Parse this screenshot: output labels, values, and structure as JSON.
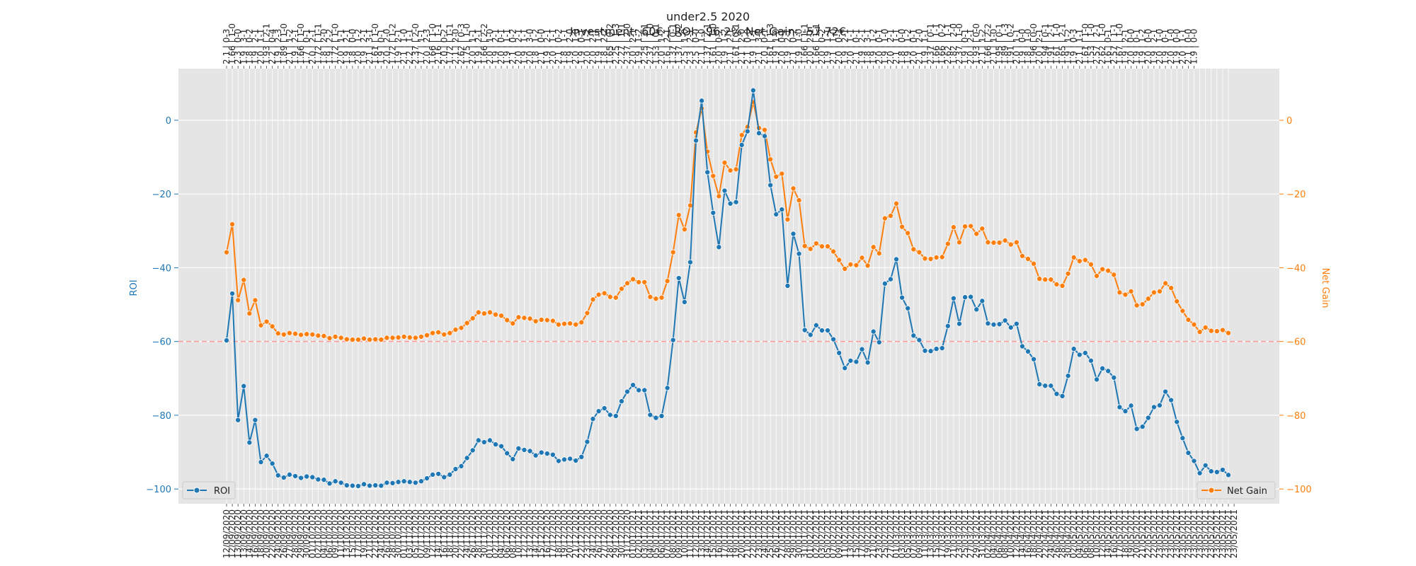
{
  "chart_data": {
    "type": "line",
    "title": "under2.5 2020",
    "subtitle": "Investment: 60€ | ROI: -96.2% Net Gain: -57.72€",
    "y_left_label": "ROI",
    "y_right_label": "Net Gain",
    "ylim_left": [
      -104,
      14
    ],
    "ylim_right": [
      -104,
      14
    ],
    "yticks_left": [
      0,
      -20,
      -40,
      -60,
      -80,
      -100
    ],
    "yticks_right": [
      0,
      -20,
      -40,
      -60,
      -80,
      -100
    ],
    "reference_line": -60,
    "grid": true,
    "legend_left": "bottom-left",
    "legend_right": "bottom-right",
    "colors": {
      "roi": "#1f77b4",
      "net_gain": "#ff7f0e",
      "reference": "#ff9999",
      "background": "#e5e5e5"
    },
    "x_labels": [
      "12/09/2020",
      "12/09/2020",
      "13/09/2020",
      "13/09/2020",
      "14/09/2020",
      "16/09/2020",
      "18/09/2020",
      "20/09/2020",
      "22/09/2020",
      "24/09/2020",
      "26/09/2020",
      "27/09/2020",
      "28/09/2020",
      "29/09/2020",
      "30/09/2020",
      "01/10/2020",
      "02/10/2020",
      "04/10/2020",
      "06/10/2020",
      "09/10/2020",
      "11/10/2020",
      "13/10/2020",
      "15/10/2020",
      "17/10/2020",
      "19/10/2020",
      "21/10/2020",
      "22/10/2020",
      "24/10/2020",
      "26/10/2020",
      "28/10/2020",
      "30/10/2020",
      "01/11/2020",
      "03/11/2020",
      "05/11/2020",
      "07/11/2020",
      "09/11/2020",
      "12/11/2020",
      "14/11/2020",
      "16/11/2020",
      "18/11/2020",
      "20/11/2020",
      "22/11/2020",
      "24/11/2020",
      "26/11/2020",
      "28/11/2020",
      "30/11/2020",
      "01/12/2020",
      "02/12/2020",
      "04/12/2020",
      "06/12/2020",
      "08/12/2020",
      "10/12/2020",
      "12/12/2020",
      "13/12/2020",
      "14/12/2020",
      "15/12/2020",
      "16/12/2020",
      "17/12/2020",
      "18/12/2020",
      "19/12/2020",
      "20/12/2020",
      "21/12/2020",
      "22/12/2020",
      "23/12/2020",
      "24/12/2020",
      "26/12/2020",
      "27/12/2020",
      "28/12/2020",
      "29/12/2020",
      "30/12/2020",
      "31/12/2020",
      "01/01/2021",
      "02/01/2021",
      "03/01/2021",
      "04/01/2021",
      "05/01/2021",
      "06/01/2021",
      "07/01/2021",
      "08/01/2021",
      "09/01/2021",
      "10/01/2021",
      "11/01/2021",
      "12/01/2021",
      "13/01/2021",
      "14/01/2021",
      "15/01/2021",
      "16/01/2021",
      "17/01/2021",
      "18/01/2021",
      "19/01/2021",
      "20/01/2021",
      "21/01/2021",
      "22/01/2021",
      "23/01/2021",
      "24/01/2021",
      "25/01/2021",
      "26/01/2021",
      "27/01/2021",
      "28/01/2021",
      "29/01/2021",
      "30/01/2021",
      "31/01/2021",
      "01/02/2021",
      "02/02/2021",
      "03/02/2021",
      "05/02/2021",
      "07/02/2021",
      "09/02/2021",
      "11/02/2021",
      "13/02/2021",
      "15/02/2021",
      "17/02/2021",
      "19/02/2021",
      "21/02/2021",
      "23/02/2021",
      "25/02/2021",
      "27/02/2021",
      "01/03/2021",
      "03/03/2021",
      "05/03/2021",
      "07/03/2021",
      "09/03/2021",
      "11/03/2021",
      "13/03/2021",
      "15/03/2021",
      "17/03/2021",
      "19/03/2021",
      "21/03/2021",
      "23/03/2021",
      "25/03/2021",
      "27/03/2021",
      "29/03/2021",
      "31/03/2021",
      "02/04/2021",
      "04/04/2021",
      "06/04/2021",
      "08/04/2021",
      "10/04/2021",
      "12/04/2021",
      "14/04/2021",
      "16/04/2021",
      "18/04/2021",
      "20/04/2021",
      "22/04/2021",
      "24/04/2021",
      "26/04/2021",
      "28/04/2021",
      "30/04/2021",
      "02/05/2021",
      "04/05/2021",
      "06/05/2021",
      "08/05/2021",
      "10/05/2021",
      "12/05/2021",
      "14/05/2021",
      "16/05/2021",
      "17/05/2021",
      "18/05/2021",
      "19/05/2021",
      "20/05/2021",
      "21/05/2021",
      "22/05/2021",
      "22/05/2021",
      "23/05/2021",
      "23/05/2021",
      "23/05/2021",
      "23/05/2021",
      "23/05/2021",
      "23/05/2021",
      "23/05/2021",
      "23/05/2021",
      "23/05/2021",
      "23/05/2021",
      "23/05/2021",
      "23/05/2021",
      "23/05/2021",
      "23/05/2021"
    ],
    "top_labels": [
      "2.1 | 0-3",
      "1.66 | 1-0",
      "2.3 | 0-0",
      "1.9 | 3-1",
      "1.8 | 0-2",
      "1.9 | 2-1",
      "2.0 | 1-1",
      "1.93 | 2-1",
      "2.2 | 0-4",
      "1.9 | 2-3",
      "1.89 | 1-0",
      "2.1 | 1-2",
      "1.9 | 2-1",
      "1.66 | 1-0",
      "1.7 | 0-1",
      "2.0 | 2-1",
      "1.72 | 1-1",
      "1.8 | 2-0",
      "1.9 | 2-2",
      "1.72 | 1-0",
      "2.0 | 1-1",
      "1.9 | 2-1",
      "1.8 | 0-0",
      "2.0 | 1-2",
      "1.9 | 2-1",
      "2.1 | 3-1",
      "1.61 | 1-0",
      "1.9 | 0-1",
      "2.0 | 2-0",
      "1.72 | 1-2",
      "1.9 | 2-1",
      "2.1 | 1-0",
      "2.2 | 1-1",
      "2.37 | 2-0",
      "1.7 | 1-1",
      "2.0 | 2-3",
      "1.66 | 1-0",
      "2.16 | 1-1",
      "2.0 | 0-2",
      "1.72 | 1-1",
      "2.1 | 2-0",
      "2.62 | 0-3",
      "1.75 | 1-0",
      "2.0 | 1-1",
      "1.9 | 2-1",
      "1.66 | 2-2",
      "2.0 | 1-0",
      "1.9 | 2-1",
      "2.0 | 0-1",
      "1.9 | 1-1",
      "2.1 | 0-2",
      "2.0 | 2-1",
      "1.9 | 1-1",
      "2.0 | 3-0",
      "1.8 | 1-2",
      "2.1 | 0-0",
      "1.9 | 2-1",
      "2.0 | 1-1",
      "2.1 | 0-2",
      "1.8 | 1-1",
      "1.9 | 2-0",
      "2.0 | 1-0",
      "1.9 | 0-1",
      "2.0 | 1-2",
      "2.0 | 2-1",
      "1.9 | 1-1",
      "1.8 | 2-2",
      "1.65 | 0-2",
      "2.25 | 1-3",
      "2.27 | 1-1",
      "2.37 | 2-0",
      "2.0 | 2-1",
      "1.9 | 1-2",
      "2.25 | 3-1",
      "2.37 | 1-0",
      "1.53 | 0-1",
      "2.0 | 1-2",
      "1.6 | 2-1",
      "1.37 | 0-1",
      "1.37 | 0-2",
      "2.5 | 1-0",
      "2.3 | 2-1",
      "2.5 | 0-0",
      "2.1 | 1-0",
      "1.37 | 2-1",
      "1.61 | 1-0",
      "2.0 | 0-2",
      "1.9 | 1-2",
      "2.1 | 2-1",
      "1.61 | 0-1",
      "2.1 | 2-0",
      "2.1 | 0-0",
      "1.9 | 1-1",
      "2.1 | 3-0",
      "2.0 | 0-1",
      "1.61 | 1-3",
      "1.9 | 1-0",
      "2.0 | 0-1",
      "1.9 | 2-1",
      "2.1 | 0-2",
      "1.9 | 1-0",
      "1.66 | 1-1",
      "2.0 | 2-1",
      "1.66 | 1-1",
      "2.0 | 0-2",
      "1.9 | 1-1",
      "2.1 | 1-0",
      "2.0 | 0-3",
      "1.9 | 2-1",
      "2.0 | 1-1",
      "2.1 | 0-1",
      "1.9 | 2-1",
      "1.8 | 3-1",
      "1.9 | 1-2",
      "2.0 | 0-1",
      "1.9 | 1-0",
      "2.0 | 2-1",
      "2.1 | 1-1",
      "1.8 | 0-0",
      "1.9 | 1-2",
      "2.0 | 0-1",
      "2.1 | 2-0",
      "1.9 | 1-1",
      "2.37 | 0-1",
      "1.66 | 1-1",
      "1.66 | 0-2",
      "2.62 | 1-1",
      "1.82 | 2-0",
      "2.37 | 1-0",
      "1.9 | 0-1",
      "2.0 | 2-1",
      "1.93 | 0-0",
      "2.1 | 1-2",
      "1.66 | 2-2",
      "2.1 | 1-0",
      "1.95 | 0-1",
      "1.89 | 1-3",
      "1.91 | 0-2",
      "2.0 | 1-1",
      "1.9 | 0-0",
      "1.8 | 1-0",
      "1.96 | 0-0",
      "2.0 | 2-1",
      "1.94 | 0-1",
      "1.91 | 2-1",
      "1.61 | 1-0",
      "1.65 | 2-1",
      "1.9 | 1-2",
      "1.9 | 0-3",
      "2.1 | 1-1",
      "1.61 | 1-0",
      "1.53 | 1-0",
      "2.57 | 2-1",
      "2.62 | 1-0",
      "1.6 | 0-1",
      "2.57 | 1-1",
      "1.67 | 1-0",
      "1.9 | 2-1",
      "2.0 | 0-0",
      "1.9 | 0-1",
      "1.9 | 1-2",
      "2.0 | 0-0",
      "1.9 | 2-1",
      "2.0 | 1-0",
      "1.9 | 0-1",
      "2.0 | 1-0",
      "1.9 | 0-0",
      "2.0 | 1-1",
      "2.1 | 0-0",
      "1.9 | 0-0"
    ],
    "series": [
      {
        "name": "ROI",
        "axis": "left",
        "values": [
          -59.7,
          -47,
          -81.3,
          -72.1,
          -87.4,
          -81.3,
          -92.7,
          -91,
          -93.1,
          -96.3,
          -96.9,
          -96.1,
          -96.5,
          -97,
          -96.6,
          -96.8,
          -97.4,
          -97.5,
          -98.5,
          -97.9,
          -98.3,
          -99,
          -99.1,
          -99.2,
          -98.7,
          -99.1,
          -99,
          -99.1,
          -98.3,
          -98.4,
          -98.1,
          -97.9,
          -98.1,
          -98.3,
          -97.9,
          -97.1,
          -96.1,
          -95.9,
          -96.8,
          -96.1,
          -94.6,
          -93.8,
          -91.6,
          -89.5,
          -86.8,
          -87.3,
          -86.8,
          -87.9,
          -88.4,
          -90.3,
          -91.9,
          -89,
          -89.4,
          -89.7,
          -90.9,
          -90.1,
          -90.4,
          -90.7,
          -92.4,
          -92,
          -91.8,
          -92.3,
          -91.3,
          -87.2,
          -81,
          -78.9,
          -78.1,
          -79.9,
          -80.2,
          -76.2,
          -73.6,
          -71.8,
          -73.2,
          -73.2,
          -79.9,
          -80.7,
          -80.2,
          -72.6,
          -59.6,
          -42.8,
          -49.3,
          -38.5,
          -5.5,
          5.3,
          -14.1,
          -25.1,
          -34.4,
          -19.1,
          -22.6,
          -22.2,
          -6.7,
          -3,
          8.1,
          -3.5,
          -4.3,
          -17.6,
          -25.5,
          -24.2,
          -44.9,
          -30.8,
          -36.2,
          -56.9,
          -58.2,
          -55.6,
          -57,
          -57,
          -59.4,
          -63.1,
          -67.2,
          -65.2,
          -65.5,
          -62.1,
          -65.7,
          -57.3,
          -60.2,
          -44.3,
          -43.1,
          -37.7,
          -48.1,
          -51,
          -58.4,
          -59.6,
          -62.5,
          -62.6,
          -62,
          -61.8,
          -55.8,
          -48.3,
          -55.2,
          -48,
          -47.9,
          -51.3,
          -49,
          -55.1,
          -55.4,
          -55.3,
          -54.3,
          -56.2,
          -55.2,
          -61.3,
          -62.7,
          -64.8,
          -71.6,
          -72,
          -72,
          -74.2,
          -74.8,
          -69.3,
          -62,
          -63.6,
          -63.1,
          -65.2,
          -70.3,
          -67.3,
          -68,
          -69.8,
          -77.8,
          -78.9,
          -77.4,
          -83.7,
          -83.1,
          -80.7,
          -77.8,
          -77.3,
          -73.6,
          -75.9,
          -81.8,
          -86.2,
          -90.2,
          -92.4,
          -95.7,
          -93.6,
          -95.2,
          -95.4,
          -94.8,
          -96.2
        ]
      },
      {
        "name": "Net Gain",
        "axis": "right",
        "values": [
          -35.8,
          -28.2,
          -48.8,
          -43.3,
          -52.4,
          -48.8,
          -55.6,
          -54.6,
          -55.9,
          -57.8,
          -58.1,
          -57.7,
          -57.9,
          -58.2,
          -58,
          -58.1,
          -58.4,
          -58.5,
          -59.1,
          -58.7,
          -59,
          -59.4,
          -59.5,
          -59.5,
          -59.2,
          -59.5,
          -59.4,
          -59.5,
          -59,
          -59,
          -58.9,
          -58.7,
          -58.9,
          -59,
          -58.7,
          -58.3,
          -57.7,
          -57.5,
          -58.1,
          -57.7,
          -56.8,
          -56.3,
          -55,
          -53.7,
          -52.1,
          -52.4,
          -52.1,
          -52.7,
          -53,
          -54.2,
          -55.1,
          -53.4,
          -53.6,
          -53.8,
          -54.5,
          -54.1,
          -54.2,
          -54.4,
          -55.4,
          -55.2,
          -55.1,
          -55.4,
          -54.8,
          -52.3,
          -48.6,
          -47.3,
          -46.9,
          -47.9,
          -48.1,
          -45.7,
          -44.2,
          -43.1,
          -43.9,
          -43.9,
          -47.9,
          -48.4,
          -48.1,
          -43.6,
          -35.8,
          -25.7,
          -29.6,
          -23.1,
          -3.3,
          3.2,
          -8.5,
          -15.1,
          -20.6,
          -11.5,
          -13.6,
          -13.3,
          -4,
          -1.8,
          4.9,
          -2.1,
          -2.6,
          -10.6,
          -15.3,
          -14.5,
          -26.9,
          -18.5,
          -21.7,
          -34.1,
          -34.9,
          -33.4,
          -34.2,
          -34.2,
          -35.6,
          -37.9,
          -40.3,
          -39.1,
          -39.3,
          -37.3,
          -39.4,
          -34.4,
          -36.1,
          -26.6,
          -25.9,
          -22.6,
          -28.9,
          -30.6,
          -35,
          -35.8,
          -37.5,
          -37.6,
          -37.2,
          -37.1,
          -33.5,
          -29,
          -33.1,
          -28.8,
          -28.7,
          -30.8,
          -29.4,
          -33.1,
          -33.2,
          -33.2,
          -32.6,
          -33.7,
          -33.1,
          -36.8,
          -37.6,
          -38.9,
          -43,
          -43.2,
          -43.2,
          -44.5,
          -44.9,
          -41.6,
          -37.2,
          -38.2,
          -37.9,
          -39.1,
          -42.2,
          -40.4,
          -40.8,
          -41.9,
          -46.7,
          -47.3,
          -46.4,
          -50.2,
          -49.9,
          -48.4,
          -46.7,
          -46.4,
          -44.2,
          -45.5,
          -49.1,
          -51.7,
          -54.1,
          -55.4,
          -57.4,
          -56.2,
          -57.1,
          -57.2,
          -56.9,
          -57.7
        ]
      }
    ]
  }
}
